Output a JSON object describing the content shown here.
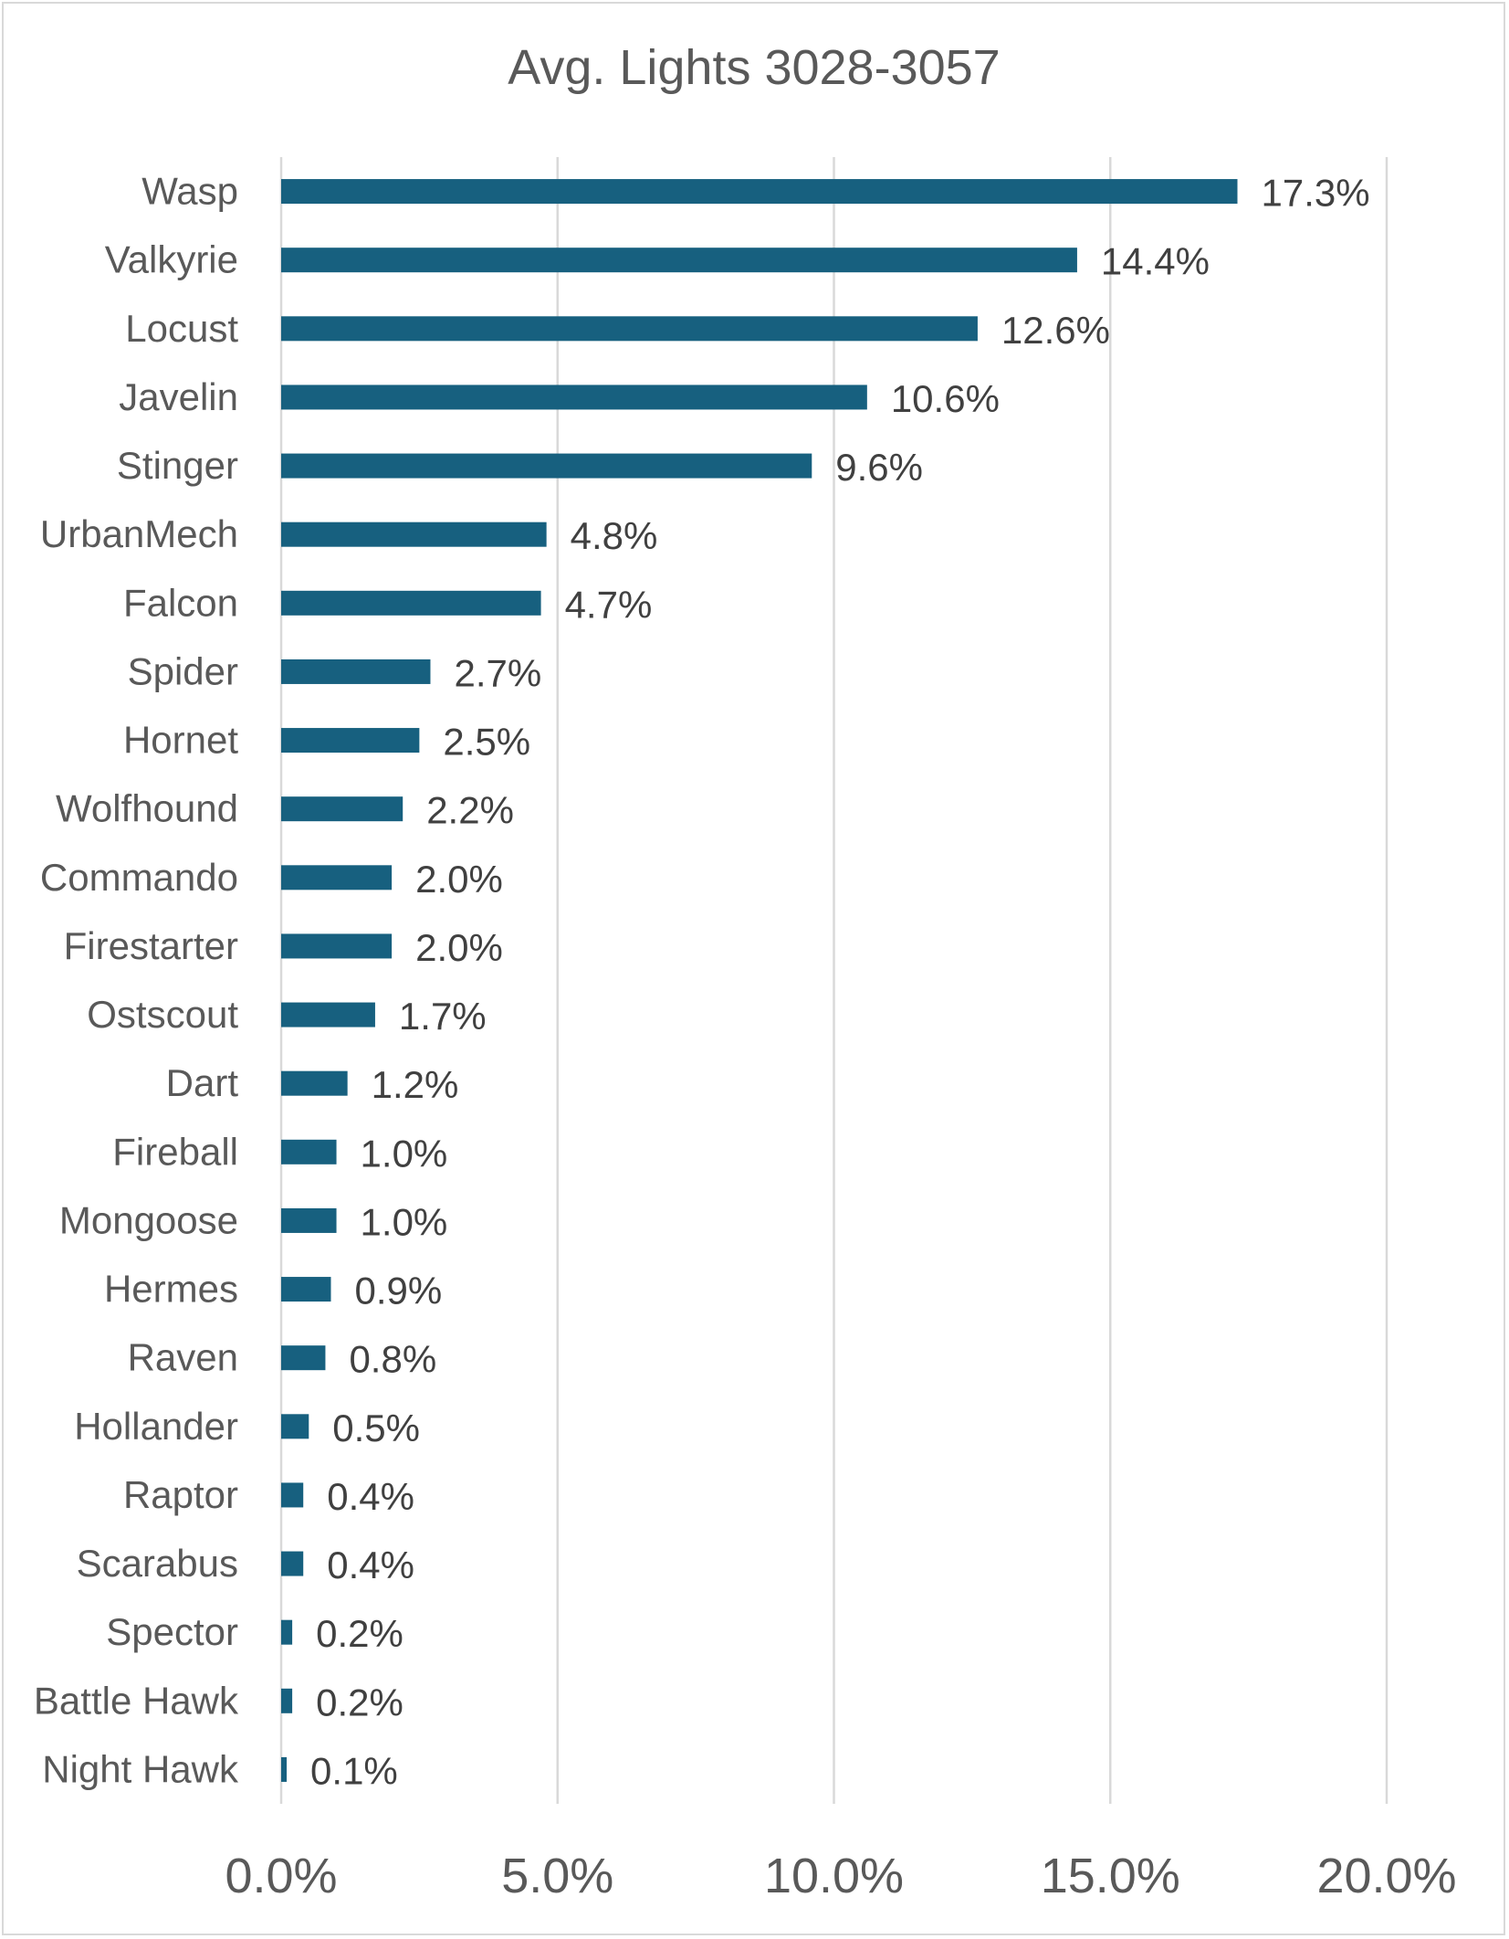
{
  "chart_data": {
    "type": "bar",
    "orientation": "horizontal",
    "title": "Avg. Lights 3028-3057",
    "xlabel": "",
    "ylabel": "",
    "categories": [
      "Wasp",
      "Valkyrie",
      "Locust",
      "Javelin",
      "Stinger",
      "UrbanMech",
      "Falcon",
      "Spider",
      "Hornet",
      "Wolfhound",
      "Commando",
      "Firestarter",
      "Ostscout",
      "Dart",
      "Fireball",
      "Mongoose",
      "Hermes",
      "Raven",
      "Hollander",
      "Raptor",
      "Scarabus",
      "Spector",
      "Battle Hawk",
      "Night Hawk"
    ],
    "values": [
      17.3,
      14.4,
      12.6,
      10.6,
      9.6,
      4.8,
      4.7,
      2.7,
      2.5,
      2.2,
      2.0,
      2.0,
      1.7,
      1.2,
      1.0,
      1.0,
      0.9,
      0.8,
      0.5,
      0.4,
      0.4,
      0.2,
      0.2,
      0.1
    ],
    "data_labels": [
      "17.3%",
      "14.4%",
      "12.6%",
      "10.6%",
      "9.6%",
      "4.8%",
      "4.7%",
      "2.7%",
      "2.5%",
      "2.2%",
      "2.0%",
      "2.0%",
      "1.7%",
      "1.2%",
      "1.0%",
      "1.0%",
      "0.9%",
      "0.8%",
      "0.5%",
      "0.4%",
      "0.4%",
      "0.2%",
      "0.2%",
      "0.1%"
    ],
    "xlim": [
      0,
      20
    ],
    "x_ticks": [
      0,
      5,
      10,
      15,
      20
    ],
    "x_tick_labels": [
      "0.0%",
      "5.0%",
      "10.0%",
      "15.0%",
      "20.0%"
    ],
    "grid": "vertical",
    "legend": "none",
    "bar_color": "#17607f",
    "grid_color": "#d9d9d9"
  }
}
